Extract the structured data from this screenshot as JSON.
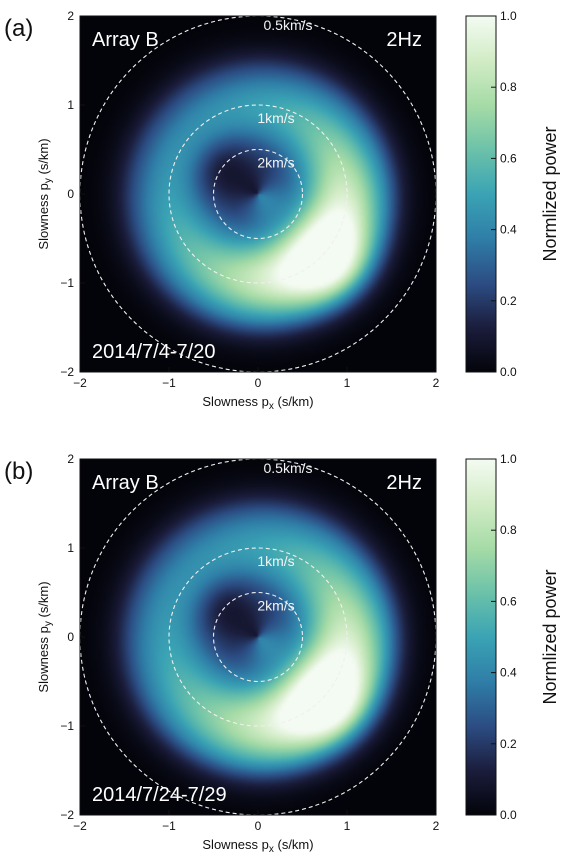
{
  "chart_data": [
    {
      "type": "heatmap",
      "panel_label": "(a)",
      "array_label": "Array B",
      "frequency_label": "2Hz",
      "date_label": "2014/7/4-7/20",
      "xlabel_main": "Slowness p",
      "xlabel_sub": "x",
      "xlabel_unit": " (s/km)",
      "ylabel_main": "Slowness p",
      "ylabel_sub": "y",
      "ylabel_unit": " (s/km)",
      "xlim": [
        -2,
        2
      ],
      "ylim": [
        -2,
        2
      ],
      "xticks": [
        -2,
        -1,
        0,
        1,
        2
      ],
      "yticks": [
        -2,
        -1,
        0,
        1,
        2
      ],
      "xtick_labels": [
        "−2",
        "−1",
        "0",
        "1",
        "2"
      ],
      "ytick_labels": [
        "−2",
        "−1",
        "0",
        "1",
        "2"
      ],
      "rings": [
        {
          "velocity_kms": 0.5,
          "radius_skm": 2.0,
          "label": "0.5km/s"
        },
        {
          "velocity_kms": 1,
          "radius_skm": 1.0,
          "label": "1km/s"
        },
        {
          "velocity_kms": 2,
          "radius_skm": 0.5,
          "label": "2km/s"
        }
      ],
      "colorbar": {
        "label": "Normlized power",
        "range": [
          0,
          1
        ],
        "ticks": [
          0.0,
          0.2,
          0.4,
          0.6,
          0.8,
          1.0
        ],
        "tick_labels": [
          "0.0",
          "0.2",
          "0.4",
          "0.6",
          "0.8",
          "1.0"
        ]
      },
      "power_peak": {
        "px": 0.82,
        "py": -0.78,
        "value": 1.0
      },
      "power_low": {
        "px": -0.35,
        "py": 0.25,
        "value": 0.15
      }
    },
    {
      "type": "heatmap",
      "panel_label": "(b)",
      "array_label": "Array B",
      "frequency_label": "2Hz",
      "date_label": "2014/7/24-7/29",
      "xlabel_main": "Slowness p",
      "xlabel_sub": "x",
      "xlabel_unit": " (s/km)",
      "ylabel_main": "Slowness p",
      "ylabel_sub": "y",
      "ylabel_unit": " (s/km)",
      "xlim": [
        -2,
        2
      ],
      "ylim": [
        -2,
        2
      ],
      "xticks": [
        -2,
        -1,
        0,
        1,
        2
      ],
      "yticks": [
        -2,
        -1,
        0,
        1,
        2
      ],
      "xtick_labels": [
        "−2",
        "−1",
        "0",
        "1",
        "2"
      ],
      "ytick_labels": [
        "−2",
        "−1",
        "0",
        "1",
        "2"
      ],
      "rings": [
        {
          "velocity_kms": 0.5,
          "radius_skm": 2.0,
          "label": "0.5km/s"
        },
        {
          "velocity_kms": 1,
          "radius_skm": 1.0,
          "label": "1km/s"
        },
        {
          "velocity_kms": 2,
          "radius_skm": 0.5,
          "label": "2km/s"
        }
      ],
      "colorbar": {
        "label": "Normlized power",
        "range": [
          0,
          1
        ],
        "ticks": [
          0.0,
          0.2,
          0.4,
          0.6,
          0.8,
          1.0
        ],
        "tick_labels": [
          "0.0",
          "0.2",
          "0.4",
          "0.6",
          "0.8",
          "1.0"
        ]
      },
      "power_peak": {
        "px": 0.78,
        "py": -0.72,
        "value": 1.0
      },
      "power_low": {
        "px": -0.4,
        "py": 0.35,
        "value": 0.15
      }
    }
  ],
  "colors": {
    "colormap": [
      "#03040a",
      "#1b1d3c",
      "#2c4d84",
      "#2f7ea8",
      "#3aa3b4",
      "#6cc2a9",
      "#a6dba6",
      "#d2ecc6",
      "#f4fbf2"
    ],
    "ring_color": "#f0f0f0",
    "frame_color": "#111111",
    "background": "#ffffff"
  }
}
